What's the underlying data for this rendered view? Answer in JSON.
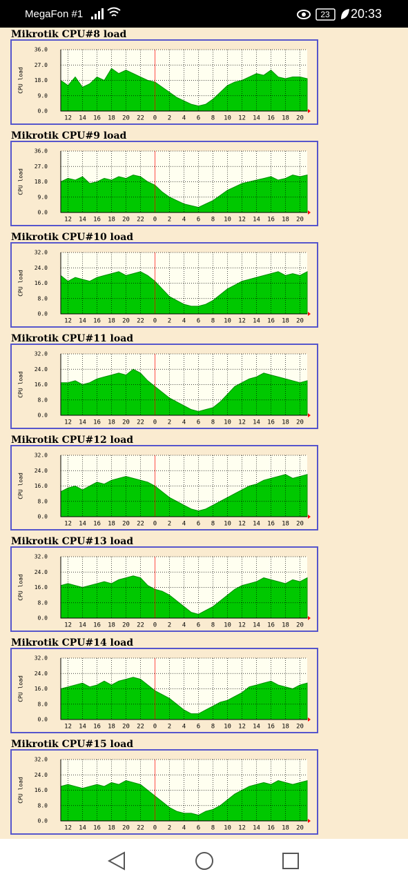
{
  "status_bar": {
    "carrier": "MegaFon #1",
    "battery": "23",
    "time": "20:33"
  },
  "chart_data": [
    {
      "type": "area",
      "title": "Mikrotik CPU#8 load",
      "y_label": "CPU load",
      "color": "#00c800",
      "grid": true,
      "categories": [
        null,
        "12",
        null,
        "14",
        null,
        "16",
        null,
        "18",
        null,
        "20",
        null,
        "22",
        null,
        "0",
        null,
        "2",
        null,
        "4",
        null,
        "6",
        null,
        "8",
        null,
        "10",
        null,
        "12",
        null,
        "14",
        null,
        "16",
        null,
        "18",
        null,
        "20",
        null
      ],
      "values": [
        18,
        15,
        20,
        14,
        16,
        20,
        18,
        25,
        22,
        24,
        22,
        20,
        18,
        17,
        14,
        11,
        8,
        6,
        4,
        3,
        4,
        7,
        11,
        15,
        17,
        18,
        20,
        22,
        21,
        24,
        20,
        19,
        20,
        20,
        19
      ],
      "ylim": [
        0,
        36
      ],
      "yticks": [
        {
          "value": 0,
          "label": "0.0"
        },
        {
          "value": 9,
          "label": "9.0"
        },
        {
          "value": 18,
          "label": "18.0"
        },
        {
          "value": 27,
          "label": "27.0"
        },
        {
          "value": 36,
          "label": "36.0"
        }
      ]
    },
    {
      "type": "area",
      "title": "Mikrotik CPU#9 load",
      "y_label": "CPU load",
      "color": "#00c800",
      "grid": true,
      "categories": [
        null,
        "12",
        null,
        "14",
        null,
        "16",
        null,
        "18",
        null,
        "20",
        null,
        "22",
        null,
        "0",
        null,
        "2",
        null,
        "4",
        null,
        "6",
        null,
        "8",
        null,
        "10",
        null,
        "12",
        null,
        "14",
        null,
        "16",
        null,
        "18",
        null,
        "20",
        null
      ],
      "values": [
        18,
        20,
        19,
        21,
        17,
        18,
        20,
        19,
        21,
        20,
        22,
        21,
        18,
        16,
        12,
        9,
        7,
        5,
        4,
        3,
        5,
        7,
        10,
        13,
        15,
        17,
        18,
        19,
        20,
        21,
        19,
        20,
        22,
        21,
        22
      ],
      "ylim": [
        0,
        36
      ],
      "yticks": [
        {
          "value": 0,
          "label": "0.0"
        },
        {
          "value": 9,
          "label": "9.0"
        },
        {
          "value": 18,
          "label": "18.0"
        },
        {
          "value": 27,
          "label": "27.0"
        },
        {
          "value": 36,
          "label": "36.0"
        }
      ]
    },
    {
      "type": "area",
      "title": "Mikrotik CPU#10 load",
      "y_label": "CPU load",
      "color": "#00c800",
      "grid": true,
      "categories": [
        null,
        "12",
        null,
        "14",
        null,
        "16",
        null,
        "18",
        null,
        "20",
        null,
        "22",
        null,
        "0",
        null,
        "2",
        null,
        "4",
        null,
        "6",
        null,
        "8",
        null,
        "10",
        null,
        "12",
        null,
        "14",
        null,
        "16",
        null,
        "18",
        null,
        "20",
        null
      ],
      "values": [
        20,
        17,
        19,
        18,
        17,
        19,
        20,
        21,
        22,
        20,
        21,
        22,
        20,
        17,
        13,
        9,
        7,
        5,
        4,
        4,
        5,
        7,
        10,
        13,
        15,
        17,
        18,
        19,
        20,
        21,
        22,
        20,
        21,
        20,
        22
      ],
      "ylim": [
        0,
        32
      ],
      "yticks": [
        {
          "value": 0,
          "label": "0.0"
        },
        {
          "value": 8,
          "label": "8.0"
        },
        {
          "value": 16,
          "label": "16.0"
        },
        {
          "value": 24,
          "label": "24.0"
        },
        {
          "value": 32,
          "label": "32.0"
        }
      ]
    },
    {
      "type": "area",
      "title": "Mikrotik CPU#11 load",
      "y_label": "CPU load",
      "color": "#00c800",
      "grid": true,
      "categories": [
        null,
        "12",
        null,
        "14",
        null,
        "16",
        null,
        "18",
        null,
        "20",
        null,
        "22",
        null,
        "0",
        null,
        "2",
        null,
        "4",
        null,
        "6",
        null,
        "8",
        null,
        "10",
        null,
        "12",
        null,
        "14",
        null,
        "16",
        null,
        "18",
        null,
        "20",
        null
      ],
      "values": [
        17,
        17,
        18,
        16,
        17,
        19,
        20,
        21,
        22,
        21,
        24,
        22,
        18,
        15,
        12,
        9,
        7,
        5,
        3,
        2,
        3,
        4,
        7,
        11,
        15,
        17,
        19,
        20,
        22,
        21,
        20,
        19,
        18,
        17,
        18
      ],
      "ylim": [
        0,
        32
      ],
      "yticks": [
        {
          "value": 0,
          "label": "0.0"
        },
        {
          "value": 8,
          "label": "8.0"
        },
        {
          "value": 16,
          "label": "16.0"
        },
        {
          "value": 24,
          "label": "24.0"
        },
        {
          "value": 32,
          "label": "32.0"
        }
      ]
    },
    {
      "type": "area",
      "title": "Mikrotik CPU#12 load",
      "y_label": "CPU load",
      "color": "#00c800",
      "grid": true,
      "categories": [
        null,
        "12",
        null,
        "14",
        null,
        "16",
        null,
        "18",
        null,
        "20",
        null,
        "22",
        null,
        "0",
        null,
        "2",
        null,
        "4",
        null,
        "6",
        null,
        "8",
        null,
        "10",
        null,
        "12",
        null,
        "14",
        null,
        "16",
        null,
        "18",
        null,
        "20",
        null
      ],
      "values": [
        13,
        15,
        16,
        14,
        16,
        18,
        17,
        19,
        20,
        21,
        20,
        19,
        18,
        16,
        13,
        10,
        8,
        6,
        4,
        3,
        4,
        6,
        8,
        10,
        12,
        14,
        16,
        17,
        19,
        20,
        21,
        22,
        20,
        21,
        22
      ],
      "ylim": [
        0,
        32
      ],
      "yticks": [
        {
          "value": 0,
          "label": "0.0"
        },
        {
          "value": 8,
          "label": "8.0"
        },
        {
          "value": 16,
          "label": "16.0"
        },
        {
          "value": 24,
          "label": "24.0"
        },
        {
          "value": 32,
          "label": "32.0"
        }
      ]
    },
    {
      "type": "area",
      "title": "Mikrotik CPU#13 load",
      "y_label": "CPU load",
      "color": "#00c800",
      "grid": true,
      "categories": [
        null,
        "12",
        null,
        "14",
        null,
        "16",
        null,
        "18",
        null,
        "20",
        null,
        "22",
        null,
        "0",
        null,
        "2",
        null,
        "4",
        null,
        "6",
        null,
        "8",
        null,
        "10",
        null,
        "12",
        null,
        "14",
        null,
        "16",
        null,
        "18",
        null,
        "20",
        null
      ],
      "values": [
        17,
        18,
        17,
        16,
        17,
        18,
        19,
        18,
        20,
        21,
        22,
        21,
        17,
        15,
        14,
        12,
        9,
        6,
        3,
        2,
        4,
        6,
        9,
        12,
        15,
        17,
        18,
        19,
        21,
        20,
        19,
        18,
        20,
        19,
        21
      ],
      "ylim": [
        0,
        32
      ],
      "yticks": [
        {
          "value": 0,
          "label": "0.0"
        },
        {
          "value": 8,
          "label": "8.0"
        },
        {
          "value": 16,
          "label": "16.0"
        },
        {
          "value": 24,
          "label": "24.0"
        },
        {
          "value": 32,
          "label": "32.0"
        }
      ]
    },
    {
      "type": "area",
      "title": "Mikrotik CPU#14 load",
      "y_label": "CPU load",
      "color": "#00c800",
      "grid": true,
      "categories": [
        null,
        "12",
        null,
        "14",
        null,
        "16",
        null,
        "18",
        null,
        "20",
        null,
        "22",
        null,
        "0",
        null,
        "2",
        null,
        "4",
        null,
        "6",
        null,
        "8",
        null,
        "10",
        null,
        "12",
        null,
        "14",
        null,
        "16",
        null,
        "18",
        null,
        "20",
        null
      ],
      "values": [
        16,
        17,
        18,
        19,
        17,
        18,
        20,
        18,
        20,
        21,
        22,
        21,
        18,
        15,
        13,
        11,
        8,
        5,
        3,
        3,
        5,
        7,
        9,
        10,
        12,
        14,
        17,
        18,
        19,
        20,
        18,
        17,
        16,
        18,
        19
      ],
      "ylim": [
        0,
        32
      ],
      "yticks": [
        {
          "value": 0,
          "label": "0.0"
        },
        {
          "value": 8,
          "label": "8.0"
        },
        {
          "value": 16,
          "label": "16.0"
        },
        {
          "value": 24,
          "label": "24.0"
        },
        {
          "value": 32,
          "label": "32.0"
        }
      ]
    },
    {
      "type": "area",
      "title": "Mikrotik CPU#15 load",
      "y_label": "CPU load",
      "color": "#00c800",
      "grid": true,
      "categories": [
        null,
        "12",
        null,
        "14",
        null,
        "16",
        null,
        "18",
        null,
        "20",
        null,
        "22",
        null,
        "0",
        null,
        "2",
        null,
        "4",
        null,
        "6",
        null,
        "8",
        null,
        "10",
        null,
        "12",
        null,
        "14",
        null,
        "16",
        null,
        "18",
        null,
        "20",
        null
      ],
      "values": [
        18,
        19,
        18,
        17,
        18,
        19,
        18,
        20,
        19,
        21,
        20,
        19,
        16,
        13,
        10,
        7,
        5,
        4,
        4,
        3,
        5,
        6,
        8,
        11,
        14,
        16,
        18,
        19,
        20,
        19,
        21,
        20,
        19,
        20,
        21
      ],
      "ylim": [
        0,
        32
      ],
      "yticks": [
        {
          "value": 0,
          "label": "0.0"
        },
        {
          "value": 8,
          "label": "8.0"
        },
        {
          "value": 16,
          "label": "16.0"
        },
        {
          "value": 24,
          "label": "24.0"
        },
        {
          "value": 32,
          "label": "32.0"
        }
      ]
    }
  ]
}
